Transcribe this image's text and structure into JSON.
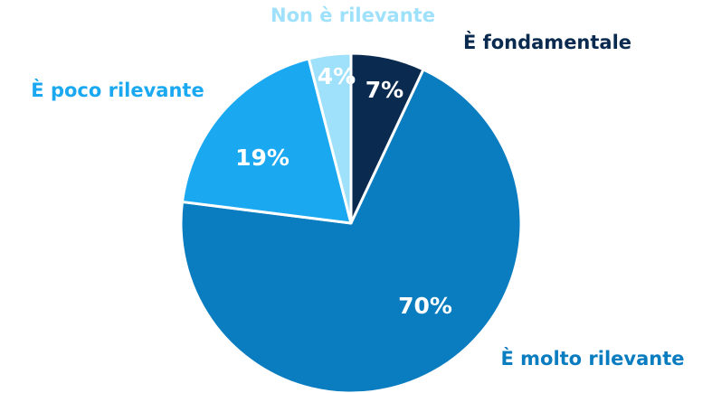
{
  "chart_data": {
    "type": "pie",
    "categories": [
      "È fondamentale",
      "È molto rilevante",
      "È poco rilevante",
      "Non è rilevante"
    ],
    "values": [
      7,
      70,
      19,
      4
    ],
    "value_labels": [
      "7%",
      "70%",
      "19%",
      "4%"
    ],
    "colors": [
      "#0b2a4f",
      "#0a7cc0",
      "#1aa9f1",
      "#9fe1fa"
    ]
  }
}
